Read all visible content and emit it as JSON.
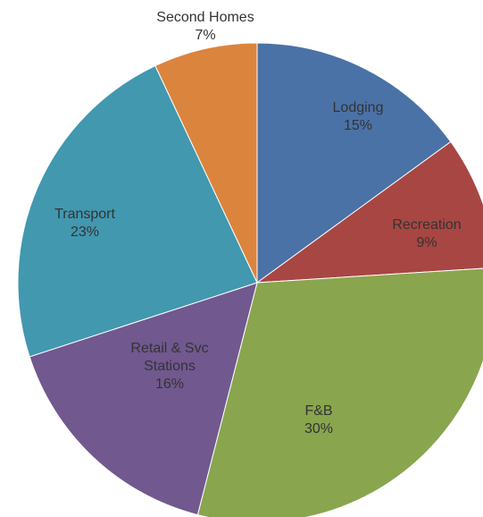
{
  "chart_data": {
    "type": "pie",
    "categories": [
      "Lodging",
      "Recreation",
      "F&B",
      "Retail & Svc Stations",
      "Transport",
      "Second Homes"
    ],
    "values": [
      15,
      9,
      30,
      16,
      23,
      7
    ],
    "value_labels": [
      "15%",
      "9%",
      "30%",
      "16%",
      "23%",
      "7%"
    ],
    "colors": [
      "#4a72a6",
      "#a84643",
      "#89a54e",
      "#71588f",
      "#4198af",
      "#db843d"
    ]
  }
}
